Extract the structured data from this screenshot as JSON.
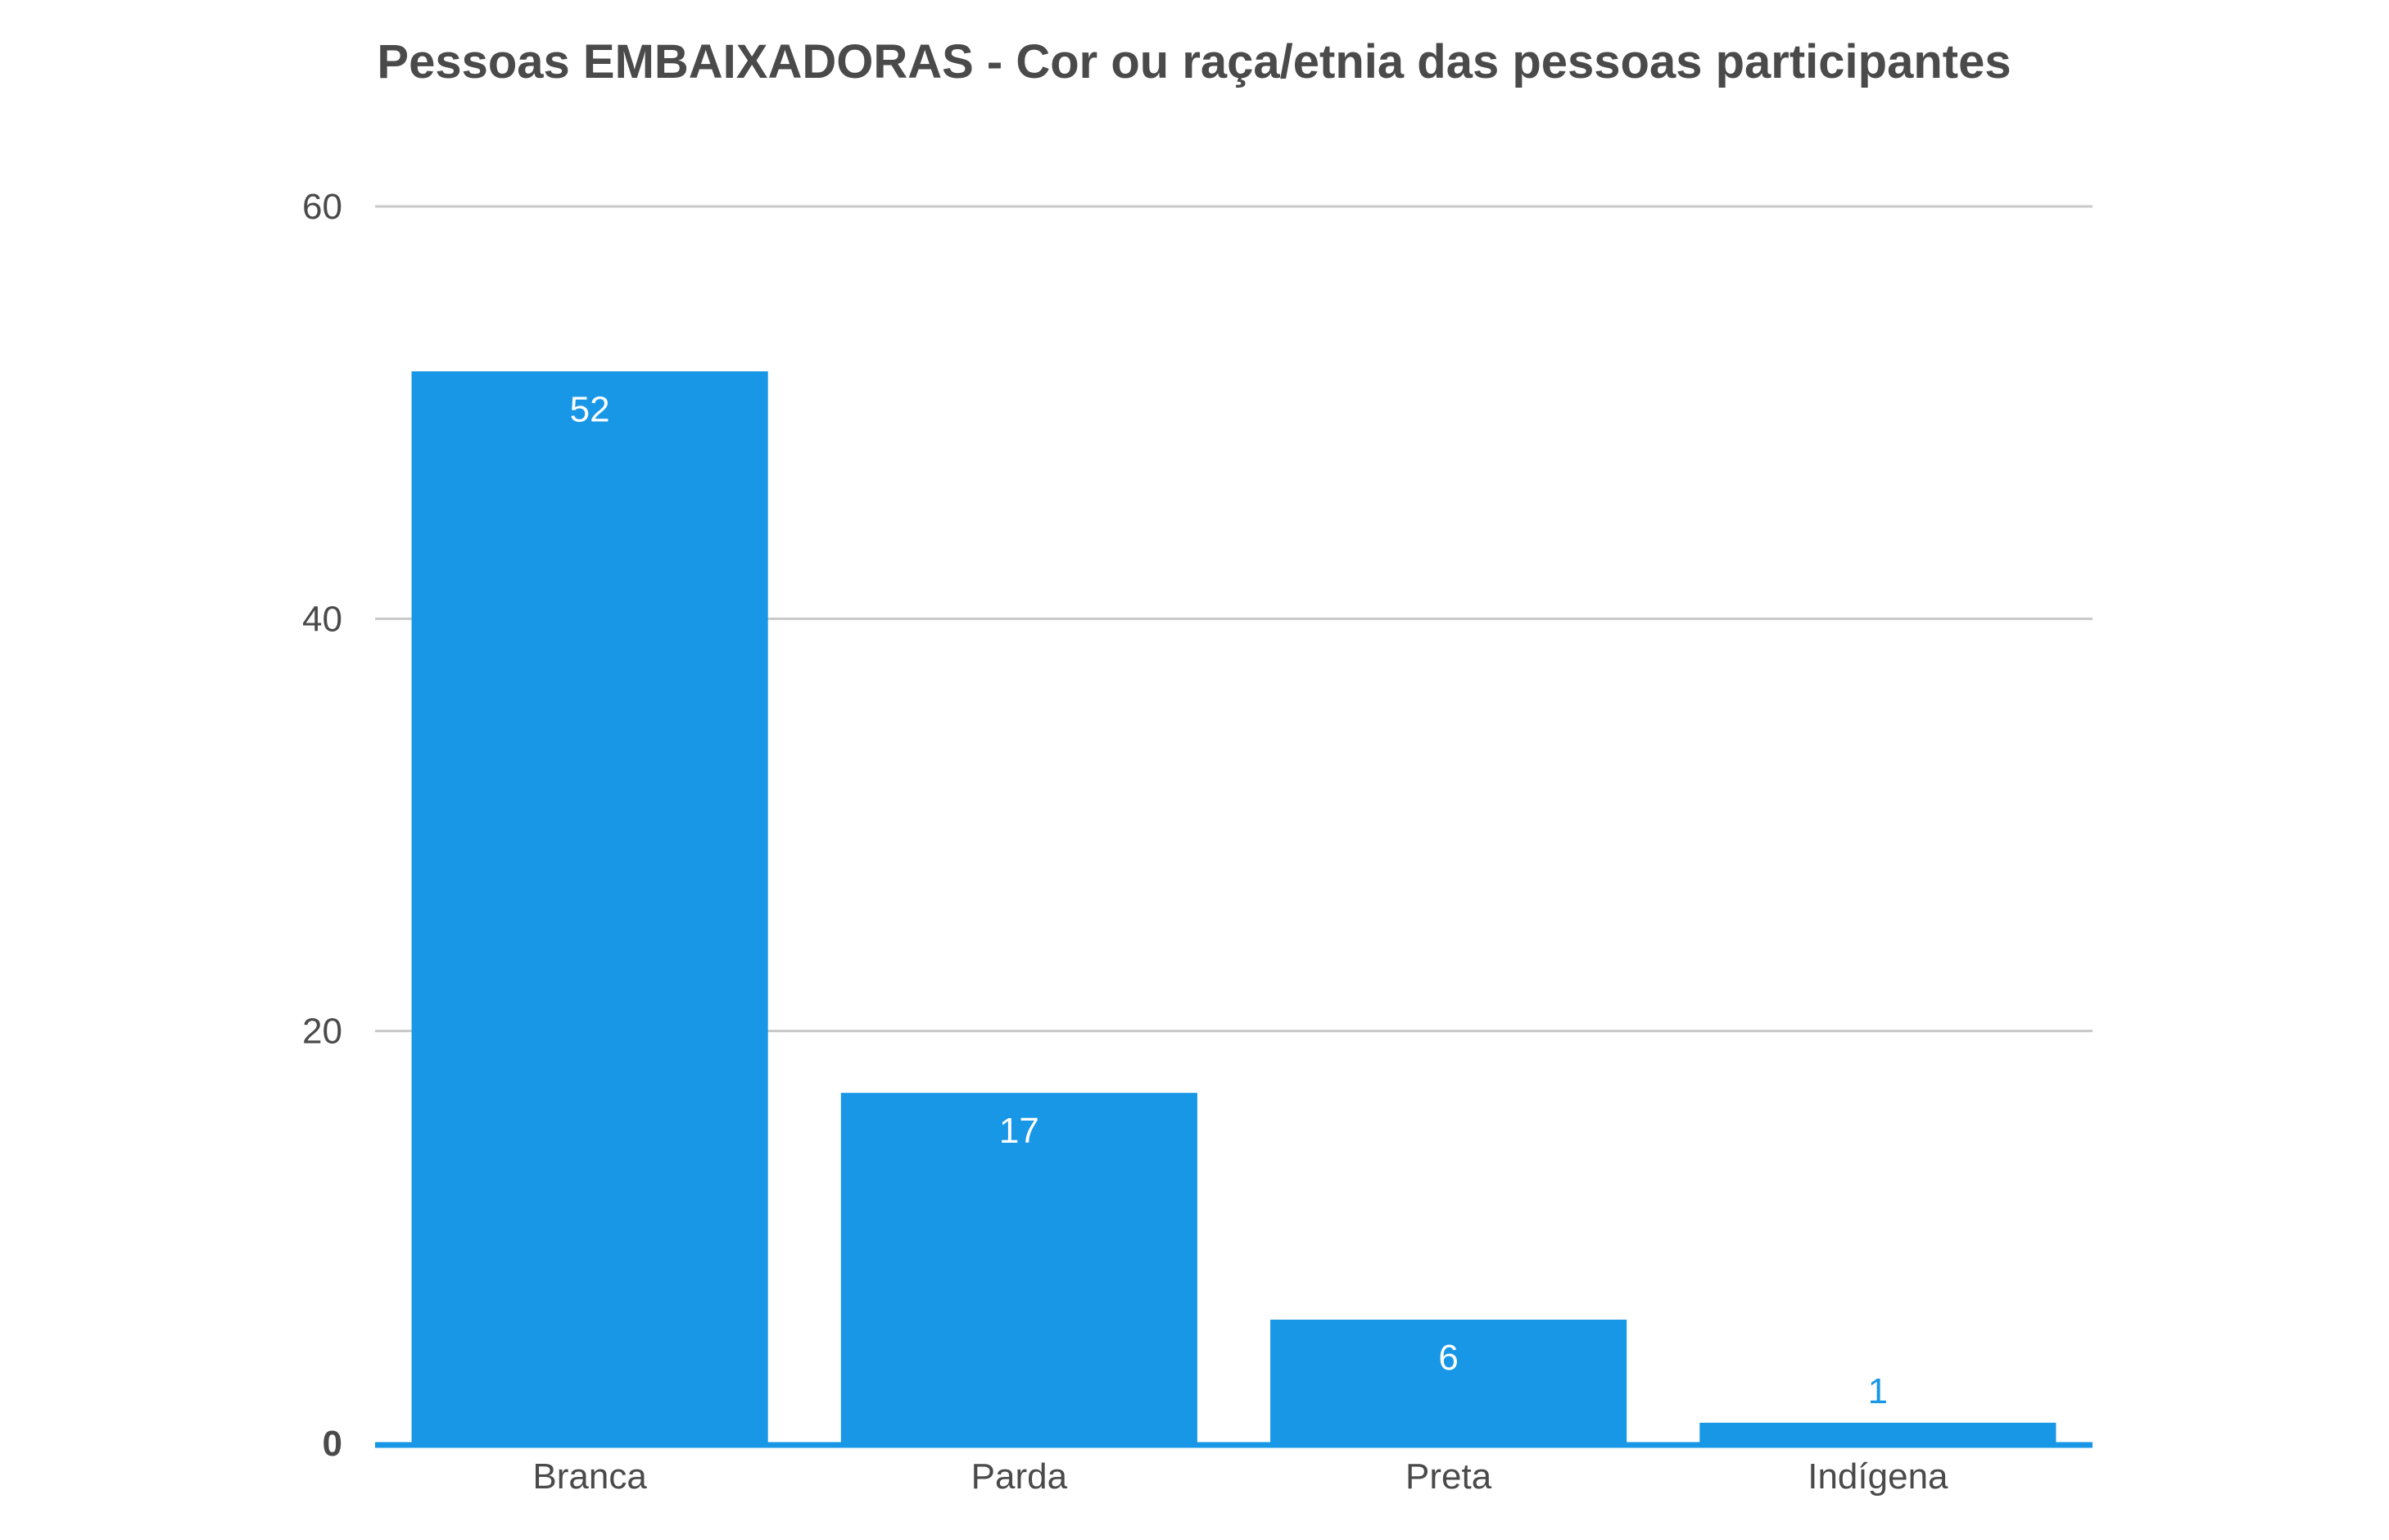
{
  "chart_data": {
    "type": "bar",
    "title": "Pessoas EMBAIXADORAS - Cor ou raça/etnia das pessoas participantes",
    "xlabel": "",
    "ylabel": "",
    "categories": [
      "Branca",
      "Parda",
      "Preta",
      "Indígena"
    ],
    "values": [
      52,
      17,
      6,
      1
    ],
    "data_labels": [
      "52",
      "17",
      "6",
      "1"
    ],
    "ylim": [
      0,
      60
    ],
    "yticks": [
      0,
      20,
      40,
      60
    ],
    "ytick_labels": [
      "0",
      "20",
      "40",
      "60"
    ],
    "grid": true,
    "legend": "none",
    "colors": {
      "bar": "#1797e6",
      "baseline": "#1797e6",
      "label_inside": "#ffffff",
      "label_outside": "#1797e6",
      "grid": "#c8c8c8",
      "text": "#4a4a4a"
    }
  }
}
